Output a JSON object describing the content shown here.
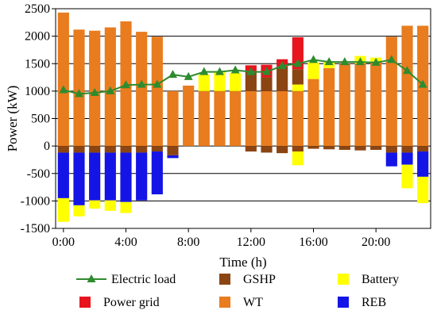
{
  "chart_data": {
    "type": "bar",
    "xlabel": "Time (h)",
    "ylabel": "Power (kW)",
    "ylim": [
      -1500,
      2500
    ],
    "yticks": [
      -1500,
      -1000,
      -500,
      0,
      500,
      1000,
      1500,
      2000,
      2500
    ],
    "xtick_labels": [
      "0:00",
      "4:00",
      "8:00",
      "12:00",
      "16:00",
      "20:00"
    ],
    "xtick_hours": [
      0,
      4,
      8,
      12,
      16,
      20
    ],
    "hours": [
      0,
      1,
      2,
      3,
      4,
      5,
      6,
      7,
      8,
      9,
      10,
      11,
      12,
      13,
      14,
      15,
      16,
      17,
      18,
      19,
      20,
      21,
      22,
      23
    ],
    "grid": "horizontal",
    "legend_position": "bottom",
    "legend": [
      {
        "key": "load",
        "label": "Electric load"
      },
      {
        "key": "gshp",
        "label": "GSHP"
      },
      {
        "key": "battery",
        "label": "Battery"
      },
      {
        "key": "grid",
        "label": "Power grid"
      },
      {
        "key": "wt",
        "label": "WT"
      },
      {
        "key": "reb",
        "label": "REB"
      }
    ],
    "series": [
      {
        "key": "wt",
        "name": "WT",
        "color": "#e87c1e",
        "role": "positive",
        "values": [
          2430,
          2120,
          2100,
          2160,
          2270,
          2080,
          1990,
          1000,
          1100,
          1000,
          1000,
          1000,
          1000,
          1000,
          1000,
          1000,
          1220,
          1420,
          1500,
          1500,
          1530,
          1990,
          2190,
          2190
        ]
      },
      {
        "key": "battery",
        "name": "Battery",
        "color": "#ffff00",
        "role": "positive",
        "values": [
          0,
          0,
          0,
          0,
          0,
          0,
          0,
          0,
          0,
          300,
          360,
          330,
          0,
          0,
          0,
          120,
          300,
          120,
          0,
          140,
          80,
          0,
          0,
          0
        ]
      },
      {
        "key": "gshp",
        "name": "GSHP",
        "color": "#8b4513",
        "role": "positive",
        "values": [
          0,
          0,
          0,
          0,
          0,
          0,
          0,
          0,
          0,
          0,
          0,
          0,
          350,
          250,
          450,
          280,
          0,
          0,
          0,
          0,
          0,
          0,
          0,
          0
        ]
      },
      {
        "key": "grid",
        "name": "Power grid",
        "color": "#e8141e",
        "role": "positive",
        "values": [
          0,
          0,
          0,
          0,
          0,
          0,
          0,
          0,
          0,
          0,
          0,
          0,
          120,
          230,
          130,
          580,
          0,
          0,
          0,
          0,
          0,
          0,
          0,
          0
        ]
      },
      {
        "key": "gshp_neg",
        "name": "GSHP",
        "color": "#8b4513",
        "role": "negative",
        "values": [
          -120,
          -120,
          -120,
          -120,
          -120,
          -120,
          -100,
          -170,
          0,
          0,
          0,
          0,
          -100,
          -120,
          -130,
          -100,
          -50,
          -60,
          -70,
          -80,
          -70,
          -120,
          -120,
          -100
        ]
      },
      {
        "key": "reb",
        "name": "REB",
        "color": "#1414e6",
        "role": "negative",
        "values": [
          -830,
          -960,
          -870,
          -870,
          -900,
          -870,
          -780,
          -50,
          0,
          0,
          0,
          0,
          0,
          0,
          0,
          0,
          0,
          0,
          0,
          0,
          0,
          -250,
          -220,
          -460
        ]
      },
      {
        "key": "battery_neg",
        "name": "Battery",
        "color": "#ffff00",
        "role": "negative",
        "values": [
          -430,
          -200,
          -150,
          -190,
          -200,
          0,
          0,
          0,
          0,
          0,
          0,
          0,
          0,
          0,
          0,
          -250,
          0,
          0,
          0,
          0,
          0,
          0,
          -430,
          -480
        ]
      }
    ],
    "load": {
      "name": "Electric load",
      "color": "#2e8b2e",
      "values": [
        1020,
        950,
        970,
        1000,
        1110,
        1120,
        1120,
        1300,
        1260,
        1350,
        1350,
        1380,
        1350,
        1350,
        1460,
        1500,
        1570,
        1530,
        1530,
        1530,
        1520,
        1570,
        1370,
        1120
      ]
    }
  }
}
